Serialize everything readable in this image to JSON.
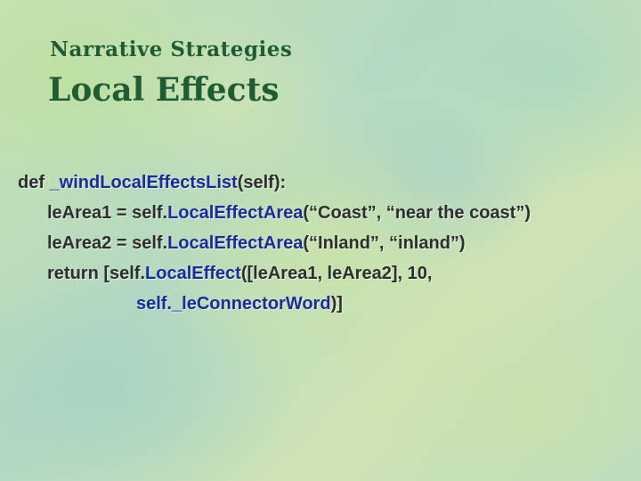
{
  "slide": {
    "subtitle": "Narrative Strategies",
    "title": "Local Effects"
  },
  "code": {
    "line1": {
      "kw": "def ",
      "fn": "_windLocalEffectsList",
      "rest": "(self):"
    },
    "line2": {
      "pre": "leArea1 = self.",
      "fn": "LocalEffectArea",
      "rest": "(“Coast”, “near the  coast”)"
    },
    "line3": {
      "pre": "leArea2 = self.",
      "fn": "LocalEffectArea",
      "rest": "(“Inland”, “inland”)"
    },
    "line4": {
      "pre": "return [self.",
      "fn": "LocalEffect",
      "rest": "([leArea1, leArea2], 10,"
    },
    "line5": {
      "fn": "self._leConnectorWord",
      "rest": ")]"
    }
  },
  "colors": {
    "title": "#1f5c33",
    "code_text": "#2e2e2e",
    "code_function": "#1c2a9c"
  }
}
